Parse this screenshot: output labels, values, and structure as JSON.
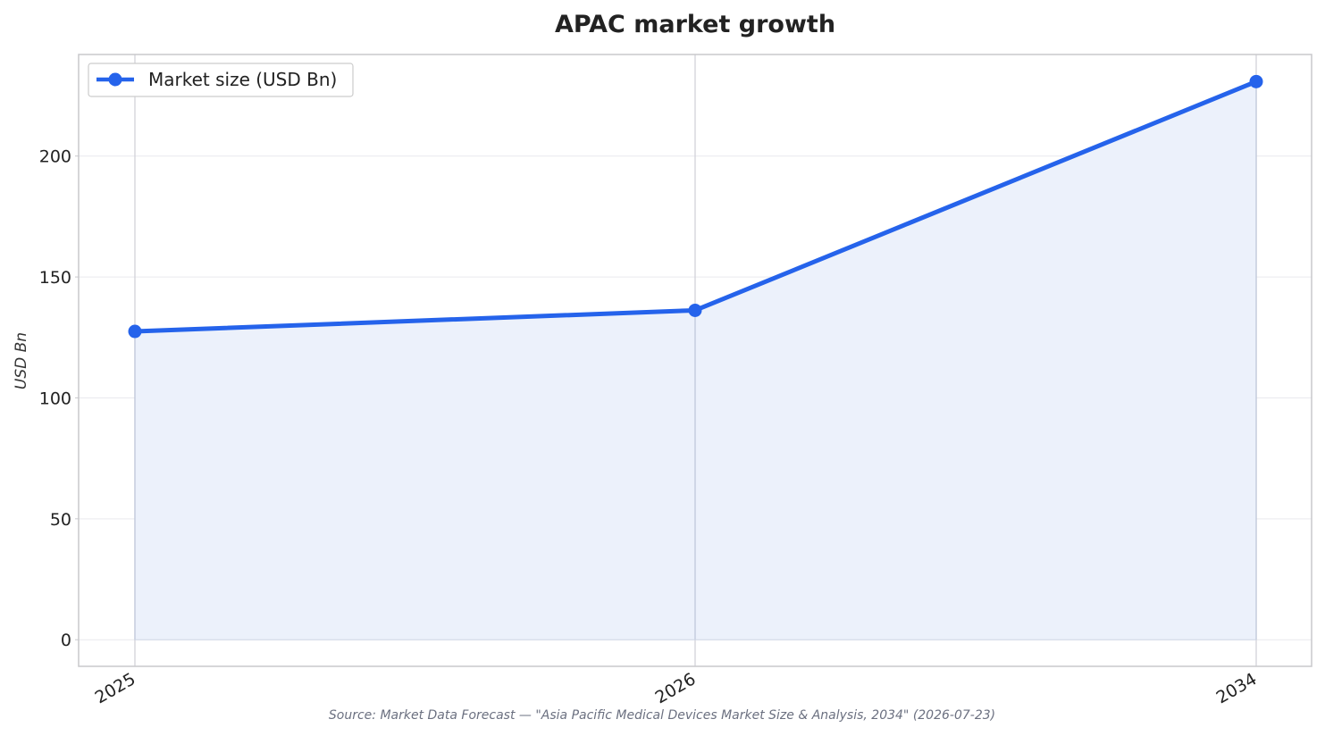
{
  "chart_data": {
    "type": "area",
    "title": "APAC market growth",
    "xlabel": "",
    "ylabel": "USD Bn",
    "categories": [
      "2025",
      "2026",
      "2034"
    ],
    "series": [
      {
        "name": "Market size (USD Bn)",
        "values": [
          127.5,
          136.2,
          230.8
        ]
      }
    ],
    "ylim": [
      -11,
      242
    ],
    "yticks": [
      0,
      50,
      100,
      150,
      200
    ],
    "grid": true,
    "legend": "top-left",
    "colors": {
      "line": "#2563eb",
      "fill": "#ecf1fb",
      "grid": "#e9e9ee",
      "frame": "#c8c8cc"
    }
  },
  "source": "Source: Market Data Forecast — \"Asia Pacific Medical Devices Market Size & Analysis, 2034\" (2026-07-23)"
}
